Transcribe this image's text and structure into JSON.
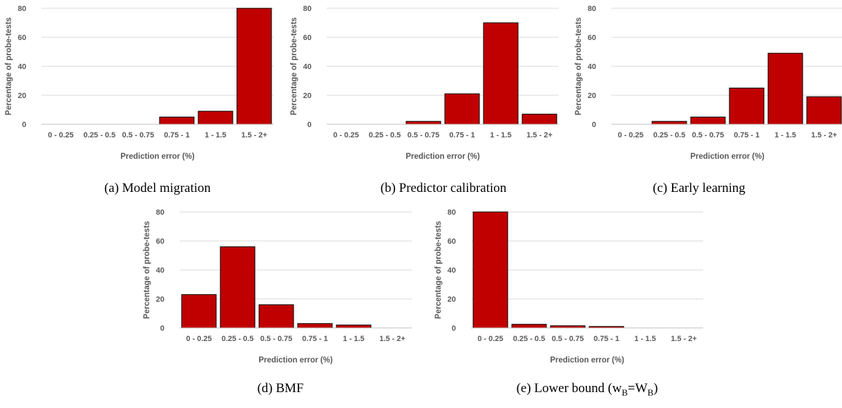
{
  "colors": {
    "bar": "#c00000",
    "grid": "#d9d9d9"
  },
  "chart_data": [
    {
      "type": "bar",
      "caption": "(a) Model migration",
      "categories": [
        "0 - 0.25",
        "0.25 - 0.5",
        "0.5 - 0.75",
        "0.75 - 1",
        "1 - 1.5",
        "1.5 - 2+"
      ],
      "values": [
        0,
        0,
        0,
        5,
        9,
        80
      ],
      "xlabel": "Prediction error (%)",
      "ylabel": "Percentage of probe-tests",
      "yticks": [
        0,
        20,
        40,
        60,
        80
      ],
      "ylim": [
        0,
        80
      ],
      "grid": true
    },
    {
      "type": "bar",
      "caption": "(b) Predictor calibration",
      "categories": [
        "0 - 0.25",
        "0.25 - 0.5",
        "0.5 - 0.75",
        "0.75 - 1",
        "1 - 1.5",
        "1.5 - 2+"
      ],
      "values": [
        0,
        0,
        2,
        21,
        70,
        7
      ],
      "xlabel": "Prediction error (%)",
      "ylabel": "Percentage of probe-tests",
      "yticks": [
        0,
        20,
        40,
        60,
        80
      ],
      "ylim": [
        0,
        80
      ],
      "grid": true
    },
    {
      "type": "bar",
      "caption": "(c) Early learning",
      "categories": [
        "0 - 0.25",
        "0.25 - 0.5",
        "0.5 - 0.75",
        "0.75 - 1",
        "1 - 1.5",
        "1.5 - 2+"
      ],
      "values": [
        0,
        2,
        5,
        25,
        49,
        19
      ],
      "xlabel": "Prediction error (%)",
      "ylabel": "Percentage of probe-tests",
      "yticks": [
        0,
        20,
        40,
        60,
        80
      ],
      "ylim": [
        0,
        80
      ],
      "grid": true
    },
    {
      "type": "bar",
      "caption": "(d) BMF",
      "categories": [
        "0 - 0.25",
        "0.25 - 0.5",
        "0.5 - 0.75",
        "0.75 - 1",
        "1 - 1.5",
        "1.5 - 2+"
      ],
      "values": [
        23,
        56,
        16,
        3,
        2,
        0
      ],
      "xlabel": "Prediction error (%)",
      "ylabel": "Percentage of probe-tests",
      "yticks": [
        0,
        20,
        40,
        60,
        80
      ],
      "ylim": [
        0,
        80
      ],
      "grid": true
    },
    {
      "type": "bar",
      "caption": "(e) Lower bound (w",
      "caption_sub1": "B",
      "caption_mid": "=W",
      "caption_sub2": "B",
      "caption_end": ")",
      "categories": [
        "0 - 0.25",
        "0.25 - 0.5",
        "0.5 - 0.75",
        "0.75 - 1",
        "1 - 1.5",
        "1.5 - 2+"
      ],
      "values": [
        80,
        2.5,
        1.5,
        1,
        0,
        0
      ],
      "xlabel": "Prediction error (%)",
      "ylabel": "Percentage of probe-tests",
      "yticks": [
        0,
        20,
        40,
        60,
        80
      ],
      "ylim": [
        0,
        80
      ],
      "grid": true
    }
  ]
}
